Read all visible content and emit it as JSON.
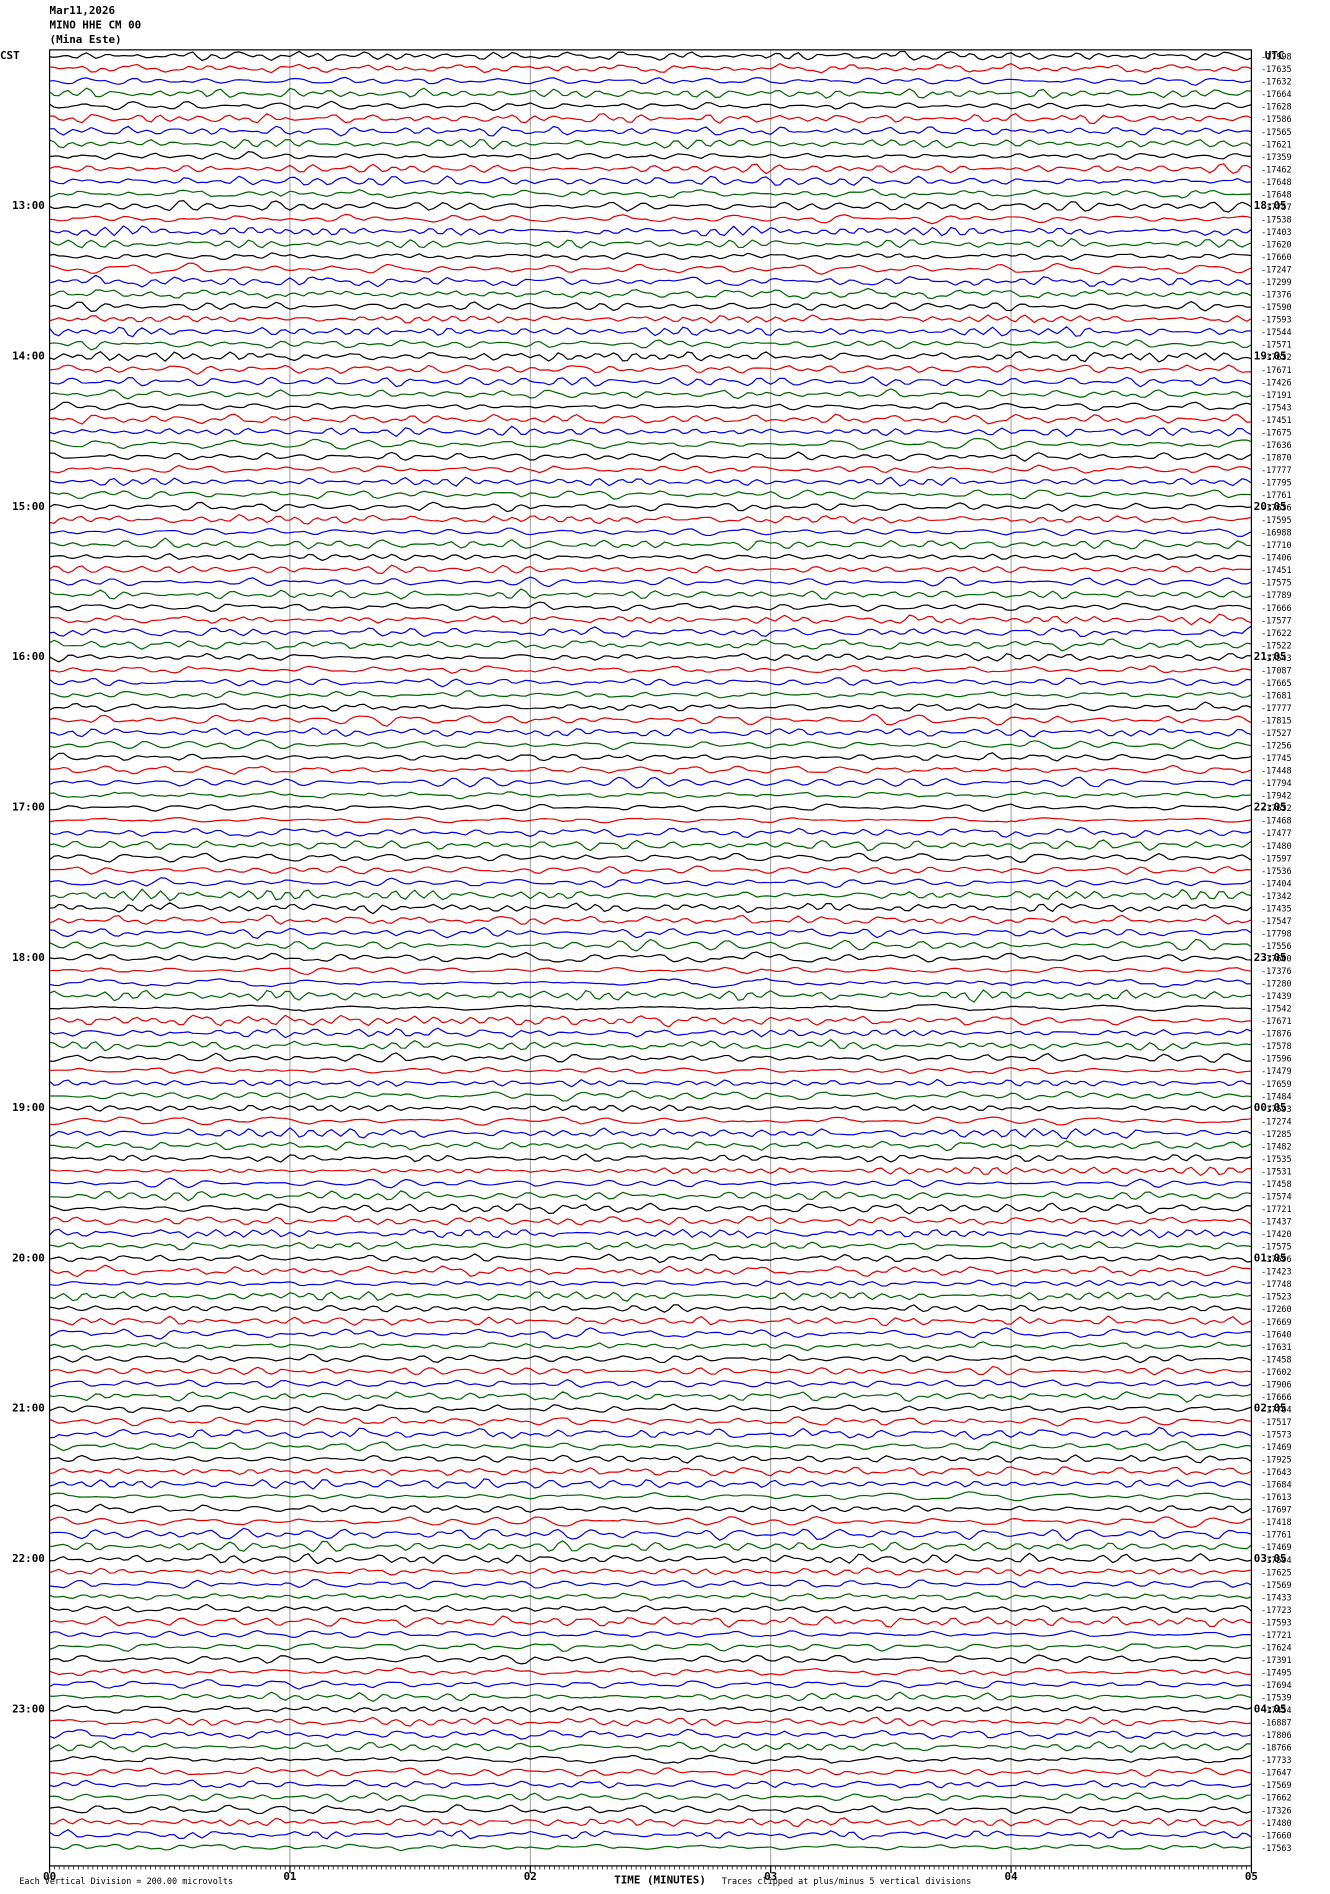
{
  "chart_data": {
    "type": "seismogram",
    "title": [
      "Mar11,2026",
      "MINO HHE CM 00",
      "(Mina Este)"
    ],
    "left_timezone": "CST",
    "right_timezone": "UTC",
    "left_hours": [
      "13:00",
      "14:00",
      "15:00",
      "16:00",
      "17:00",
      "18:00",
      "19:00",
      "20:00",
      "21:00",
      "22:00",
      "23:00"
    ],
    "right_hours": [
      "18:05",
      "19:05",
      "20:05",
      "21:05",
      "22:05",
      "23:05",
      "00:05",
      "01:05",
      "02:05",
      "03:05",
      "04:05"
    ],
    "traces_per_hour": 12,
    "trace_labels": [
      "-17998",
      "-17635",
      "-17632",
      "-17664",
      "-17628",
      "-17586",
      "-17565",
      "-17621",
      "-17359",
      "-17462",
      "-17648",
      "-17648",
      "-17757",
      "-17538",
      "-17403",
      "-17620",
      "-17660",
      "-17247",
      "-17299",
      "-17376",
      "-17590",
      "-17593",
      "-17544",
      "-17571",
      "-17632",
      "-17671",
      "-17426",
      "-17191",
      "-17543",
      "-17451",
      "-17675",
      "-17636",
      "-17870",
      "-17777",
      "-17795",
      "-17761",
      "-17636",
      "-17595",
      "-16988",
      "-17710",
      "-17406",
      "-17451",
      "-17575",
      "-17789",
      "-17666",
      "-17577",
      "-17622",
      "-17522",
      "-17543",
      "-17087",
      "-17665",
      "-17681",
      "-17777",
      "-17815",
      "-17527",
      "-17256",
      "-17745",
      "-17448",
      "-17794",
      "-17942",
      "-17632",
      "-17468",
      "-17477",
      "-17480",
      "-17597",
      "-17536",
      "-17404",
      "-17342",
      "-17435",
      "-17547",
      "-17798",
      "-17556",
      "-17600",
      "-17376",
      "-17280",
      "-17439",
      "-17542",
      "-17671",
      "-17876",
      "-17578",
      "-17596",
      "-17479",
      "-17659",
      "-17484",
      "-17593",
      "-17274",
      "-17285",
      "-17482",
      "-17535",
      "-17531",
      "-17458",
      "-17574",
      "-17721",
      "-17437",
      "-17420",
      "-17575",
      "-17696",
      "-17423",
      "-17748",
      "-17523",
      "-17260",
      "-17669",
      "-17640",
      "-17631",
      "-17458",
      "-17602",
      "-17906",
      "-17666",
      "-17764",
      "-17517",
      "-17573",
      "-17469",
      "-17925",
      "-17643",
      "-17684",
      "-17613",
      "-17697",
      "-17418",
      "-17761",
      "-17469",
      "-17594",
      "-17625",
      "-17569",
      "-17433",
      "-17723",
      "-17593",
      "-17721",
      "-17624",
      "-17391",
      "-17495",
      "-17694",
      "-17539",
      "-17454",
      "-16887",
      "-17806",
      "-18766",
      "-17733",
      "-17647",
      "-17569",
      "-17662",
      "-17326",
      "-17480",
      "-17660",
      "-17563"
    ],
    "trace_colors": [
      "#000000",
      "#e00000",
      "#0000e0",
      "#006400"
    ],
    "xlim": [
      0,
      5
    ],
    "xticks": [
      {
        "value": 0,
        "label": "00"
      },
      {
        "value": 1,
        "label": "01"
      },
      {
        "value": 2,
        "label": "02"
      },
      {
        "value": 3,
        "label": "03"
      },
      {
        "value": 4,
        "label": "04"
      },
      {
        "value": 5,
        "label": "05"
      }
    ],
    "xlabel": "TIME (MINUTES)",
    "scale_note": "Each Vertical Division =  200.00 microvolts",
    "clip_note": "Traces clipped at plus/minus 5 vertical divisions",
    "grid": true
  }
}
